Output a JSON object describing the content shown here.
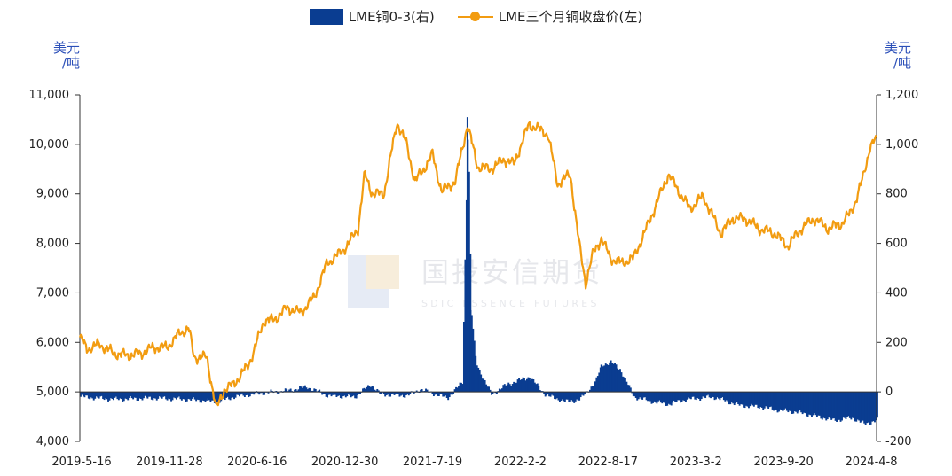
{
  "legend": {
    "bar_label": "LME铜0-3(右)",
    "line_label": "LME三个月铜收盘价(左)"
  },
  "units": {
    "left": "美元\n/吨",
    "right": "美元\n/吨"
  },
  "watermark": {
    "cn": "国投安信期货",
    "en": "SDIC ESSENCE FUTURES"
  },
  "colors": {
    "bar": "#0a3d91",
    "line": "#f29c11",
    "axis": "#333333"
  },
  "chart_data": {
    "type": "line+bar",
    "x_tick_labels": [
      "2019-5-16",
      "2019-11-28",
      "2020-6-16",
      "2020-12-30",
      "2021-7-19",
      "2022-2-2",
      "2022-8-17",
      "2023-3-2",
      "2023-9-20",
      "2024-4-8"
    ],
    "left_axis": {
      "range": [
        4000,
        11000
      ],
      "ticks": [
        "4,000",
        "5,000",
        "6,000",
        "7,000",
        "8,000",
        "9,000",
        "10,000",
        "11,000"
      ]
    },
    "right_axis": {
      "range": [
        -200,
        1200
      ],
      "ticks": [
        "-200",
        "0",
        "200",
        "400",
        "600",
        "800",
        "1,000",
        "1,200"
      ]
    },
    "series": [
      {
        "name": "LME三个月铜收盘价(左)",
        "axis": "left",
        "points": [
          [
            "2019-05-16",
            6100
          ],
          [
            "2019-06-01",
            5870
          ],
          [
            "2019-07-01",
            5960
          ],
          [
            "2019-08-01",
            5780
          ],
          [
            "2019-09-01",
            5740
          ],
          [
            "2019-10-01",
            5770
          ],
          [
            "2019-11-01",
            5900
          ],
          [
            "2019-12-01",
            5900
          ],
          [
            "2020-01-01",
            6200
          ],
          [
            "2020-01-20",
            6280
          ],
          [
            "2020-02-01",
            5700
          ],
          [
            "2020-03-01",
            5700
          ],
          [
            "2020-03-23",
            4650
          ],
          [
            "2020-04-10",
            5050
          ],
          [
            "2020-05-01",
            5150
          ],
          [
            "2020-06-01",
            5500
          ],
          [
            "2020-06-16",
            5800
          ],
          [
            "2020-07-10",
            6450
          ],
          [
            "2020-08-01",
            6450
          ],
          [
            "2020-09-01",
            6700
          ],
          [
            "2020-10-01",
            6600
          ],
          [
            "2020-11-01",
            6900
          ],
          [
            "2020-12-01",
            7600
          ],
          [
            "2020-12-30",
            7800
          ],
          [
            "2021-01-15",
            7950
          ],
          [
            "2021-02-10",
            8300
          ],
          [
            "2021-02-25",
            9400
          ],
          [
            "2021-03-15",
            9000
          ],
          [
            "2021-04-10",
            9000
          ],
          [
            "2021-05-10",
            10450
          ],
          [
            "2021-06-01",
            10000
          ],
          [
            "2021-06-20",
            9250
          ],
          [
            "2021-07-10",
            9500
          ],
          [
            "2021-07-30",
            9800
          ],
          [
            "2021-08-20",
            9050
          ],
          [
            "2021-09-20",
            9250
          ],
          [
            "2021-10-18",
            10400
          ],
          [
            "2021-11-10",
            9550
          ],
          [
            "2021-12-10",
            9500
          ],
          [
            "2022-01-10",
            9700
          ],
          [
            "2022-02-01",
            9600
          ],
          [
            "2022-03-07",
            10400
          ],
          [
            "2022-04-01",
            10300
          ],
          [
            "2022-04-20",
            10200
          ],
          [
            "2022-05-12",
            9200
          ],
          [
            "2022-06-10",
            9400
          ],
          [
            "2022-06-30",
            8000
          ],
          [
            "2022-07-15",
            7200
          ],
          [
            "2022-08-01",
            7800
          ],
          [
            "2022-08-20",
            8100
          ],
          [
            "2022-09-10",
            7700
          ],
          [
            "2022-10-05",
            7600
          ],
          [
            "2022-11-01",
            7700
          ],
          [
            "2022-12-01",
            8300
          ],
          [
            "2023-01-20",
            9400
          ],
          [
            "2023-02-20",
            8950
          ],
          [
            "2023-03-10",
            8700
          ],
          [
            "2023-04-10",
            8950
          ],
          [
            "2023-05-20",
            8200
          ],
          [
            "2023-06-15",
            8500
          ],
          [
            "2023-07-15",
            8500
          ],
          [
            "2023-08-15",
            8300
          ],
          [
            "2023-09-20",
            8200
          ],
          [
            "2023-10-20",
            7950
          ],
          [
            "2023-11-20",
            8300
          ],
          [
            "2023-12-20",
            8500
          ],
          [
            "2024-01-20",
            8300
          ],
          [
            "2024-02-20",
            8400
          ],
          [
            "2024-03-10",
            8600
          ],
          [
            "2024-03-25",
            8900
          ],
          [
            "2024-04-08",
            9300
          ],
          [
            "2024-04-25",
            9950
          ],
          [
            "2024-05-10",
            10100
          ]
        ]
      },
      {
        "name": "LME铜0-3(右)",
        "axis": "right",
        "points": [
          [
            "2019-05-16",
            -20
          ],
          [
            "2019-08-01",
            -30
          ],
          [
            "2019-11-01",
            -25
          ],
          [
            "2020-01-10",
            -30
          ],
          [
            "2020-03-23",
            -40
          ],
          [
            "2020-05-01",
            -20
          ],
          [
            "2020-07-01",
            -5
          ],
          [
            "2020-09-01",
            5
          ],
          [
            "2020-10-15",
            20
          ],
          [
            "2020-12-01",
            -15
          ],
          [
            "2021-02-01",
            -20
          ],
          [
            "2021-03-10",
            30
          ],
          [
            "2021-04-01",
            -10
          ],
          [
            "2021-06-01",
            -15
          ],
          [
            "2021-07-01",
            10
          ],
          [
            "2021-09-01",
            -25
          ],
          [
            "2021-10-05",
            40
          ],
          [
            "2021-10-18",
            1110
          ],
          [
            "2021-10-25",
            330
          ],
          [
            "2021-11-05",
            120
          ],
          [
            "2021-11-20",
            60
          ],
          [
            "2021-12-10",
            -10
          ],
          [
            "2022-01-15",
            30
          ],
          [
            "2022-03-07",
            60
          ],
          [
            "2022-04-15",
            -15
          ],
          [
            "2022-06-01",
            -40
          ],
          [
            "2022-07-01",
            -30
          ],
          [
            "2022-08-05",
            40
          ],
          [
            "2022-08-20",
            110
          ],
          [
            "2022-09-10",
            120
          ],
          [
            "2022-10-01",
            90
          ],
          [
            "2022-11-01",
            -20
          ],
          [
            "2022-12-15",
            -40
          ],
          [
            "2023-01-20",
            -50
          ],
          [
            "2023-03-01",
            -30
          ],
          [
            "2023-05-01",
            -20
          ],
          [
            "2023-07-01",
            -55
          ],
          [
            "2023-08-15",
            -60
          ],
          [
            "2023-10-01",
            -75
          ],
          [
            "2023-11-01",
            -80
          ],
          [
            "2023-12-15",
            -95
          ],
          [
            "2024-02-01",
            -115
          ],
          [
            "2024-03-15",
            -105
          ],
          [
            "2024-04-10",
            -130
          ],
          [
            "2024-05-10",
            -115
          ]
        ]
      }
    ]
  }
}
